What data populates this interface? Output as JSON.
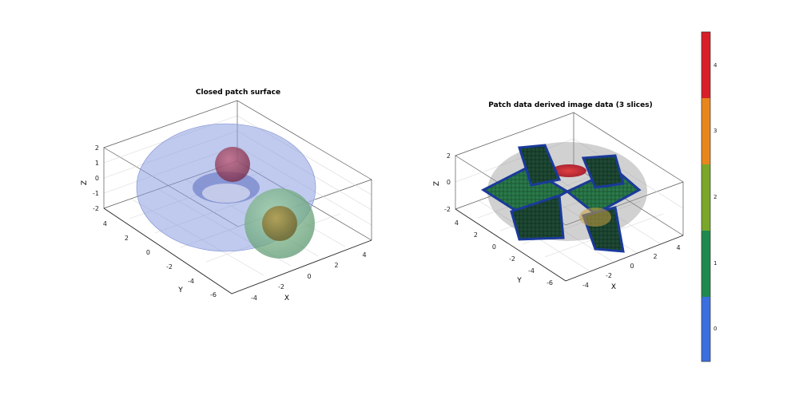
{
  "chart_data": [
    {
      "type": "3d-surface",
      "title": "Closed patch surface",
      "xlabel": "X",
      "ylabel": "Y",
      "zlabel": "Z",
      "xticks": [
        "-4",
        "-2",
        "0",
        "2",
        "4"
      ],
      "yticks": [
        "4",
        "2",
        "0",
        "-2",
        "-4",
        "-6"
      ],
      "zticks": [
        "2",
        "1",
        "0",
        "-1",
        "-2"
      ],
      "xlim": [
        -5,
        5
      ],
      "ylim": [
        -7,
        5
      ],
      "zlim": [
        -2,
        2
      ],
      "grid": true,
      "objects": [
        {
          "name": "torus",
          "color": "#8c9fe0"
        },
        {
          "name": "small sphere",
          "color": "#b0384a"
        },
        {
          "name": "large sphere",
          "color": "#4f9a6c"
        },
        {
          "name": "inner sphere",
          "color": "#8a7d3a"
        }
      ]
    },
    {
      "type": "3d-voxel",
      "title": "Patch data derived image data (3 slices)",
      "xlabel": "X",
      "ylabel": "Y",
      "zlabel": "Z",
      "xticks": [
        "-4",
        "-2",
        "0",
        "2",
        "4"
      ],
      "yticks": [
        "4",
        "2",
        "0",
        "-2",
        "-4",
        "-6"
      ],
      "zticks": [
        "2",
        "0",
        "-2"
      ],
      "xlim": [
        -5,
        5
      ],
      "ylim": [
        -7,
        5
      ],
      "zlim": [
        -2,
        2
      ],
      "grid": true,
      "slices": 3
    }
  ],
  "colorbar": {
    "ticks": [
      "4",
      "3",
      "2",
      "1",
      "0"
    ],
    "colors": [
      "#d9202a",
      "#e8861c",
      "#7aa72a",
      "#1f8a50",
      "#3a6fe0"
    ]
  }
}
